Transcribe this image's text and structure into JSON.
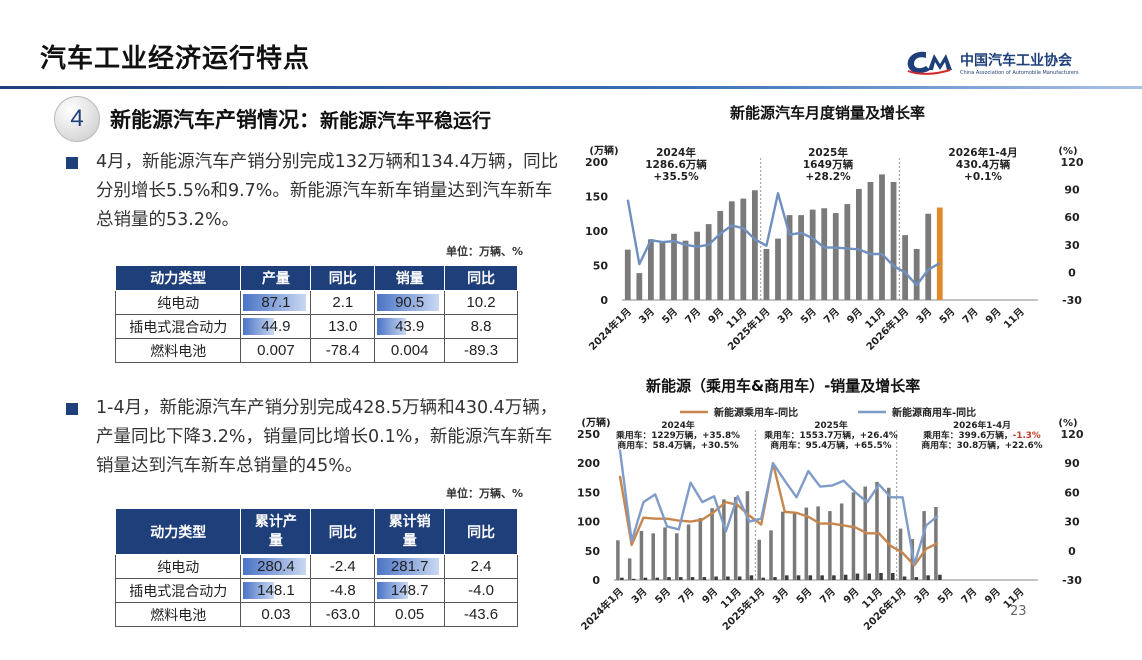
{
  "header": {
    "title": "汽车工业经济运行特点",
    "logo_cn": "中国汽车工业协会",
    "logo_en": "China Association of Automobile Manufacturers"
  },
  "section": {
    "number": "4",
    "title": "新能源汽车产销情况：",
    "subtitle": "新能源汽车平稳运行"
  },
  "para1": "4月，新能源汽车产销分别完成132万辆和134.4万辆，同比分别增长5.5%和9.7%。新能源汽车新车销量达到汽车新车总销量的53.2%。",
  "para2": "1-4月，新能源汽车产销分别完成428.5万辆和430.4万辆，产量同比下降3.2%，销量同比增长0.1%，新能源汽车新车销量达到汽车新车总销量的45%。",
  "unit_label": "单位：万辆、%",
  "table1": {
    "headers": [
      "动力类型",
      "产量",
      "同比",
      "销量",
      "同比"
    ],
    "rows": [
      {
        "type": "纯电动",
        "prod": "87.1",
        "prod_frac": 0.96,
        "prod_yoy": "2.1",
        "sales": "90.5",
        "sales_frac": 0.96,
        "sales_yoy": "10.2"
      },
      {
        "type": "插电式混合动力",
        "prod": "44.9",
        "prod_frac": 0.5,
        "prod_yoy": "13.0",
        "sales": "43.9",
        "sales_frac": 0.48,
        "sales_yoy": "8.8"
      },
      {
        "type": "燃料电池",
        "prod": "0.007",
        "prod_frac": 0,
        "prod_yoy": "-78.4",
        "sales": "0.004",
        "sales_frac": 0,
        "sales_yoy": "-89.3"
      }
    ]
  },
  "table2": {
    "headers": [
      "动力类型",
      "累计产量",
      "同比",
      "累计销量",
      "同比"
    ],
    "rows": [
      {
        "type": "纯电动",
        "prod": "280.4",
        "prod_frac": 0.96,
        "prod_yoy": "-2.4",
        "sales": "281.7",
        "sales_frac": 0.96,
        "sales_yoy": "2.4"
      },
      {
        "type": "插电式混合动力",
        "prod": "148.1",
        "prod_frac": 0.5,
        "prod_yoy": "-4.8",
        "sales": "148.7",
        "sales_frac": 0.5,
        "sales_yoy": "-4.0"
      },
      {
        "type": "燃料电池",
        "prod": "0.03",
        "prod_frac": 0,
        "prod_yoy": "-63.0",
        "sales": "0.05",
        "sales_frac": 0,
        "sales_yoy": "-43.6"
      }
    ]
  },
  "page_number": "23",
  "chart_data": [
    {
      "type": "bar",
      "title": "新能源汽车月度销量及增长率",
      "ylabel": "(万辆)",
      "y2label": "(%)",
      "ylim": [
        0,
        200
      ],
      "y2lim": [
        -30,
        120
      ],
      "yticks": [
        0,
        50,
        100,
        150,
        200
      ],
      "y2ticks": [
        -30,
        0,
        30,
        60,
        90,
        120
      ],
      "xticks": [
        "2024年1月",
        "3月",
        "5月",
        "7月",
        "9月",
        "11月",
        "2025年1月",
        "3月",
        "5月",
        "7月",
        "9月",
        "11月",
        "2026年1月",
        "3月",
        "5月",
        "7月",
        "9月",
        "11月"
      ],
      "annotations": [
        {
          "lines": [
            "2024年",
            "1286.6万辆",
            "+35.5%"
          ]
        },
        {
          "lines": [
            "2025年",
            "1649万辆",
            "+28.2%"
          ]
        },
        {
          "lines": [
            "2026年1-4月",
            "430.4万辆",
            "+0.1%"
          ]
        }
      ],
      "bar_values": [
        73,
        39,
        88,
        85,
        96,
        86,
        99,
        110,
        129,
        143,
        147,
        159,
        74,
        89,
        123,
        123,
        131,
        133,
        126,
        139,
        161,
        171,
        182,
        171,
        94,
        74,
        125,
        134
      ],
      "bar_highlight_index": 27,
      "line_name": "同比",
      "line_values": [
        79,
        9,
        35,
        33,
        34,
        30,
        28,
        30,
        42,
        51,
        48,
        36,
        29,
        86,
        41,
        43,
        37,
        27,
        27,
        26,
        25,
        20,
        20,
        7,
        0,
        -14,
        3,
        10
      ]
    },
    {
      "type": "bar",
      "title": "新能源（乘用车&商用车）-销量及增长率",
      "ylabel": "(万辆)",
      "y2label": "(%)",
      "ylim": [
        0,
        250
      ],
      "y2lim": [
        -30,
        120
      ],
      "yticks": [
        0,
        50,
        100,
        150,
        200,
        250
      ],
      "y2ticks": [
        -30,
        0,
        30,
        60,
        90,
        120
      ],
      "xticks": [
        "2024年1月",
        "3月",
        "5月",
        "7月",
        "9月",
        "11月",
        "2025年1月",
        "3月",
        "5月",
        "7月",
        "9月",
        "11月",
        "2026年1月",
        "3月",
        "5月",
        "7月",
        "9月",
        "11月"
      ],
      "legend": [
        "新能源乘用车-同比",
        "新能源商用车-同比"
      ],
      "annotations": [
        {
          "lines": [
            "2024年",
            "乘用车：1229万辆，+35.8%",
            "商用车：58.4万辆，+30.5%"
          ]
        },
        {
          "lines": [
            "2025年",
            "乘用车：1553.7万辆，+26.4%",
            "商用车：95.4万辆，+65.5%"
          ]
        },
        {
          "lines": [
            "2026年1-4月",
            "乘用车：399.6万辆，-1.3%",
            "商用车：30.8万辆，+22.6%"
          ]
        }
      ],
      "passenger_values": [
        68,
        37,
        84,
        80,
        90,
        80,
        95,
        106,
        123,
        138,
        142,
        152,
        69,
        85,
        117,
        116,
        124,
        126,
        118,
        131,
        150,
        160,
        168,
        158,
        88,
        70,
        118,
        125
      ],
      "commercial_values": [
        4,
        2,
        4,
        4,
        5,
        5,
        5,
        5,
        6,
        6,
        6,
        8,
        4,
        5,
        8,
        8,
        8,
        8,
        8,
        9,
        11,
        11,
        12,
        12,
        6,
        5,
        8,
        9
      ],
      "series": [
        {
          "name": "新能源乘用车-同比",
          "color": "#c7864d",
          "values": [
            77,
            6,
            34,
            33,
            33,
            31,
            30,
            32,
            40,
            50,
            47,
            36,
            27,
            90,
            40,
            39,
            35,
            28,
            28,
            26,
            24,
            18,
            18,
            5,
            -2,
            -15,
            2,
            8
          ]
        },
        {
          "name": "新能源商用车-同比",
          "color": "#7f9cc9",
          "values": [
            104,
            10,
            50,
            58,
            25,
            22,
            70,
            50,
            56,
            20,
            56,
            30,
            33,
            90,
            72,
            55,
            82,
            66,
            67,
            72,
            60,
            50,
            68,
            55,
            55,
            -14,
            26,
            36
          ]
        }
      ]
    }
  ]
}
